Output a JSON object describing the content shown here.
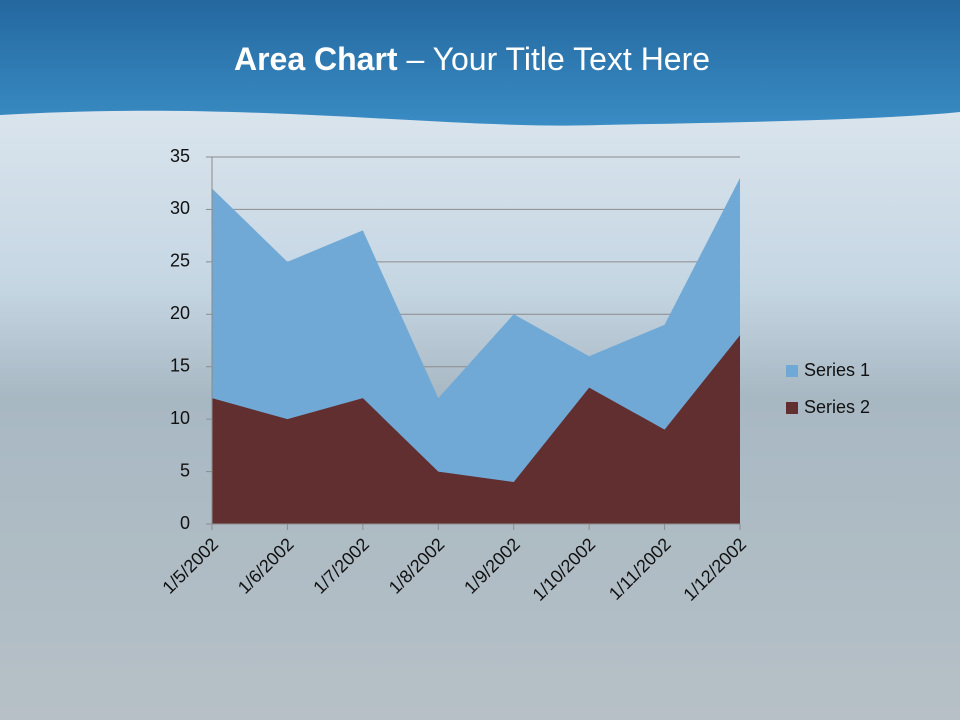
{
  "title": {
    "bold": "Area Chart",
    "rest": "– Your Title Text Here"
  },
  "chart_data": {
    "type": "area",
    "categories": [
      "1/5/2002",
      "1/6/2002",
      "1/7/2002",
      "1/8/2002",
      "1/9/2002",
      "1/10/2002",
      "1/11/2002",
      "1/12/2002"
    ],
    "series": [
      {
        "name": "Series 1",
        "color": "#70a9d6",
        "values": [
          32,
          25,
          28,
          12,
          20,
          16,
          19,
          33
        ]
      },
      {
        "name": "Series 2",
        "color": "#622f30",
        "values": [
          12,
          10,
          12,
          5,
          4,
          13,
          9,
          18
        ]
      }
    ],
    "ylim": [
      0,
      35
    ],
    "yticks": [
      0,
      5,
      10,
      15,
      20,
      25,
      30,
      35
    ],
    "grid": true,
    "legend": "right"
  }
}
